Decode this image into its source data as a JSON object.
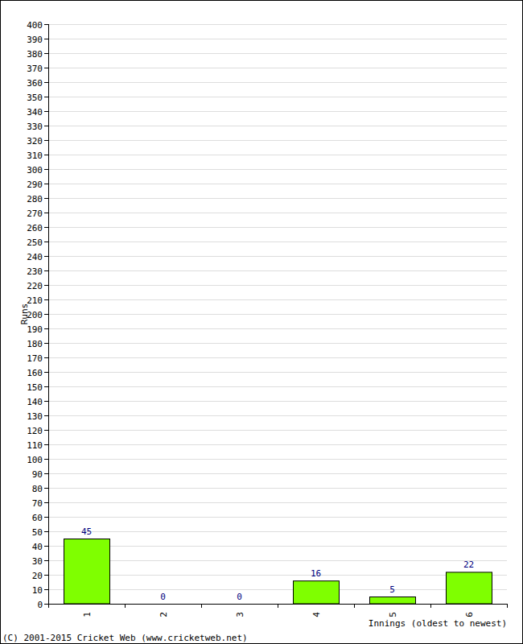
{
  "chart_data": {
    "type": "bar",
    "x_label": "Innings (oldest to newest)",
    "y_label": "Runs",
    "annotations": [
      "(C) 2001-2015 Cricket Web (www.cricketweb.net)"
    ],
    "categories": [
      "1",
      "2",
      "3",
      "4",
      "5",
      "6"
    ],
    "values": [
      45,
      0,
      0,
      16,
      5,
      22
    ],
    "color": "#7fff00",
    "ylim": [
      0,
      400
    ],
    "yticks": [
      0,
      10,
      20,
      30,
      40,
      50,
      60,
      70,
      80,
      90,
      100,
      110,
      120,
      130,
      140,
      150,
      160,
      170,
      180,
      190,
      200,
      210,
      220,
      230,
      240,
      250,
      260,
      270,
      280,
      290,
      300,
      310,
      320,
      330,
      340,
      350,
      360,
      370,
      380,
      390,
      400
    ],
    "grid": true,
    "data_labels": true
  }
}
